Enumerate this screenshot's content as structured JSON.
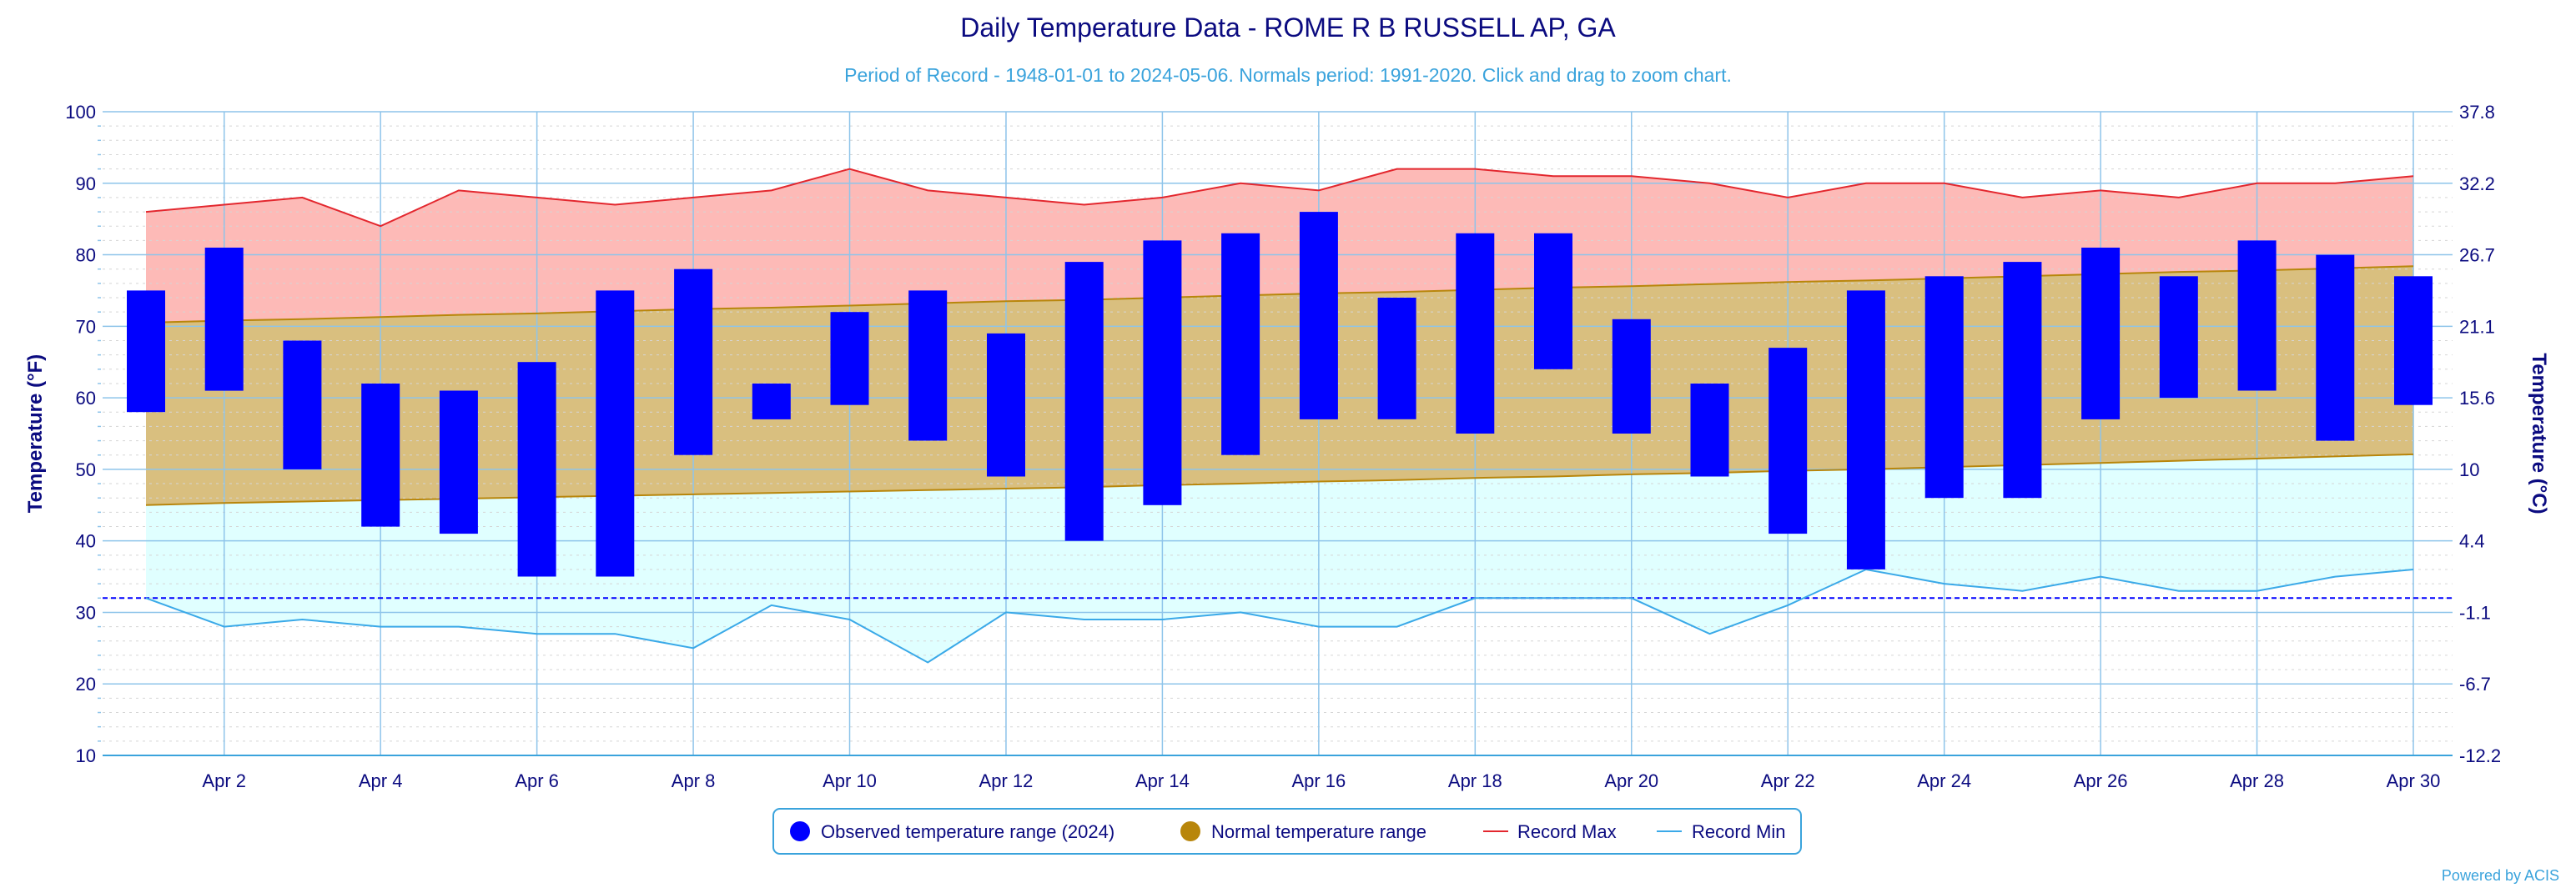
{
  "chart_data": {
    "type": "bar",
    "title": "Daily Temperature Data - ROME R B RUSSELL AP, GA",
    "subtitle": "Period of Record - 1948-01-01 to 2024-05-06. Normals period: 1991-2020. Click and drag to zoom chart.",
    "ylabel": "Temperature (°F)",
    "ylabel_right": "Temperature (°C)",
    "ylim": [
      10,
      100
    ],
    "yticks": [
      10,
      20,
      30,
      40,
      50,
      60,
      70,
      80,
      90,
      100
    ],
    "yticks_right": [
      "-12.2",
      "-6.7",
      "-1.1",
      "4.4",
      "10",
      "15.6",
      "21.1",
      "26.7",
      "32.2",
      "37.8"
    ],
    "x": [
      "Apr 1",
      "Apr 2",
      "Apr 3",
      "Apr 4",
      "Apr 5",
      "Apr 6",
      "Apr 7",
      "Apr 8",
      "Apr 9",
      "Apr 10",
      "Apr 11",
      "Apr 12",
      "Apr 13",
      "Apr 14",
      "Apr 15",
      "Apr 16",
      "Apr 17",
      "Apr 18",
      "Apr 19",
      "Apr 20",
      "Apr 21",
      "Apr 22",
      "Apr 23",
      "Apr 24",
      "Apr 25",
      "Apr 26",
      "Apr 27",
      "Apr 28",
      "Apr 29",
      "Apr 30"
    ],
    "xtick_labels": [
      "Apr 2",
      "Apr 4",
      "Apr 6",
      "Apr 8",
      "Apr 10",
      "Apr 12",
      "Apr 14",
      "Apr 16",
      "Apr 18",
      "Apr 20",
      "Apr 22",
      "Apr 24",
      "Apr 26",
      "Apr 28",
      "Apr 30"
    ],
    "freezing_line": 32,
    "grid": true,
    "legend_position": "bottom",
    "series": [
      {
        "name": "Observed temperature range (2024)",
        "kind": "range-bar",
        "color": "#0000ff",
        "low": [
          58,
          61,
          50,
          42,
          41,
          35,
          35,
          52,
          57,
          59,
          54,
          49,
          40,
          45,
          52,
          57,
          57,
          55,
          64,
          55,
          49,
          41,
          36,
          46,
          46,
          57,
          60,
          61,
          54,
          59
        ],
        "high": [
          75,
          81,
          68,
          62,
          61,
          65,
          75,
          78,
          62,
          72,
          75,
          69,
          79,
          82,
          83,
          86,
          74,
          83,
          83,
          71,
          62,
          67,
          75,
          77,
          79,
          81,
          77,
          82,
          80,
          77
        ]
      },
      {
        "name": "Normal temperature range",
        "kind": "range-area",
        "color": "#b8860b",
        "fill": "#d9bf7f",
        "low": [
          45.0,
          45.3,
          45.5,
          45.7,
          45.9,
          46.1,
          46.3,
          46.5,
          46.7,
          46.9,
          47.1,
          47.3,
          47.5,
          47.8,
          48.0,
          48.3,
          48.5,
          48.8,
          49.0,
          49.3,
          49.5,
          49.8,
          50.0,
          50.3,
          50.6,
          50.9,
          51.2,
          51.5,
          51.8,
          52.1
        ],
        "high": [
          70.5,
          70.8,
          71.0,
          71.3,
          71.6,
          71.8,
          72.1,
          72.4,
          72.6,
          72.9,
          73.2,
          73.5,
          73.7,
          74.0,
          74.3,
          74.6,
          74.8,
          75.1,
          75.4,
          75.6,
          75.9,
          76.2,
          76.4,
          76.7,
          77.0,
          77.3,
          77.6,
          77.8,
          78.1,
          78.4
        ]
      },
      {
        "name": "Record Max",
        "kind": "line",
        "color": "#e3272e",
        "fill": "#fdbab7",
        "values": [
          86,
          87,
          88,
          84,
          89,
          88,
          87,
          88,
          89,
          92,
          89,
          88,
          87,
          88,
          90,
          89,
          92,
          92,
          91,
          91,
          90,
          88,
          90,
          90,
          88,
          89,
          88,
          90,
          90,
          91
        ]
      },
      {
        "name": "Record Min",
        "kind": "line",
        "color": "#3aa9e8",
        "fill": "#e0ffff",
        "values": [
          32,
          28,
          29,
          28,
          28,
          27,
          27,
          25,
          31,
          29,
          23,
          30,
          29,
          29,
          30,
          28,
          28,
          32,
          32,
          32,
          27,
          31,
          36,
          34,
          33,
          35,
          33,
          33,
          35,
          36
        ]
      }
    ],
    "credit": "Powered by ACIS"
  }
}
